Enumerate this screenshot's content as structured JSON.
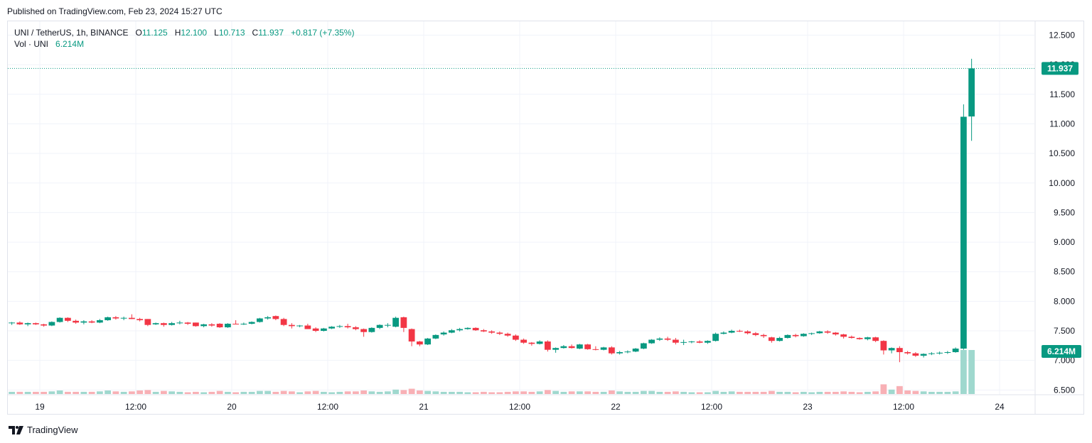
{
  "published": "Published on TradingView.com, Feb 23, 2024 15:27 UTC",
  "legend": {
    "symbol": "UNI / TetherUS, 1h, BINANCE",
    "o_label": "O",
    "o": "11.125",
    "h_label": "H",
    "h": "12.100",
    "l_label": "L",
    "l": "10.713",
    "c_label": "C",
    "c": "11.937",
    "change": "+0.817 (+7.35%)",
    "vol_label": "Vol · UNI",
    "vol": "6.214M"
  },
  "brand": "TradingView",
  "colors": {
    "up": "#089981",
    "down": "#f23645",
    "up_vol": "#9fd8ce",
    "down_vol": "#f8b0b5",
    "grid": "#f0f3fa"
  },
  "chart_data": {
    "type": "candlestick",
    "symbol": "UNI / TetherUS",
    "interval": "1h",
    "exchange": "BINANCE",
    "y_ticks": [
      "12.500",
      "12.000",
      "11.500",
      "11.000",
      "10.500",
      "10.000",
      "9.500",
      "9.000",
      "8.500",
      "8.000",
      "7.500",
      "7.000",
      "6.500"
    ],
    "ylim": [
      6.42,
      12.53
    ],
    "x_ticks": [
      "19",
      "12:00",
      "20",
      "12:00",
      "21",
      "12:00",
      "22",
      "12:00",
      "23",
      "12:00",
      "24"
    ],
    "x_tick_hours": [
      0,
      12,
      24,
      36,
      48,
      60,
      72,
      84,
      96,
      108,
      120
    ],
    "xlim_hours": [
      -4,
      120
    ],
    "last_price": "11.937",
    "last_volume": "6.214M",
    "candles": [
      [
        -3.5,
        7.63,
        7.65,
        7.6,
        7.64
      ],
      [
        -2.5,
        7.64,
        7.66,
        7.6,
        7.61
      ],
      [
        -1.5,
        7.61,
        7.64,
        7.58,
        7.63
      ],
      [
        -0.5,
        7.63,
        7.64,
        7.6,
        7.61
      ],
      [
        0.5,
        7.61,
        7.62,
        7.57,
        7.59
      ],
      [
        1.5,
        7.59,
        7.66,
        7.58,
        7.65
      ],
      [
        2.5,
        7.65,
        7.73,
        7.64,
        7.72
      ],
      [
        3.5,
        7.72,
        7.73,
        7.65,
        7.67
      ],
      [
        4.5,
        7.67,
        7.69,
        7.62,
        7.64
      ],
      [
        5.5,
        7.64,
        7.68,
        7.61,
        7.66
      ],
      [
        6.5,
        7.66,
        7.68,
        7.63,
        7.64
      ],
      [
        7.5,
        7.64,
        7.7,
        7.63,
        7.68
      ],
      [
        8.5,
        7.68,
        7.74,
        7.67,
        7.73
      ],
      [
        9.5,
        7.73,
        7.75,
        7.69,
        7.71
      ],
      [
        10.5,
        7.71,
        7.74,
        7.68,
        7.72
      ],
      [
        11.5,
        7.72,
        7.78,
        7.7,
        7.7
      ],
      [
        12.5,
        7.7,
        7.72,
        7.66,
        7.68
      ],
      [
        13.5,
        7.7,
        7.7,
        7.58,
        7.6
      ],
      [
        14.5,
        7.61,
        7.64,
        7.6,
        7.63
      ],
      [
        15.5,
        7.63,
        7.64,
        7.57,
        7.6
      ],
      [
        16.5,
        7.6,
        7.65,
        7.59,
        7.63
      ],
      [
        17.5,
        7.63,
        7.67,
        7.61,
        7.64
      ],
      [
        18.5,
        7.64,
        7.65,
        7.6,
        7.62
      ],
      [
        19.5,
        7.64,
        7.64,
        7.57,
        7.58
      ],
      [
        20.5,
        7.58,
        7.62,
        7.56,
        7.61
      ],
      [
        21.5,
        7.61,
        7.63,
        7.57,
        7.59
      ],
      [
        22.5,
        7.62,
        7.63,
        7.55,
        7.56
      ],
      [
        23.5,
        7.56,
        7.63,
        7.55,
        7.62
      ],
      [
        24.5,
        7.62,
        7.68,
        7.61,
        7.61
      ],
      [
        25.5,
        7.61,
        7.64,
        7.6,
        7.62
      ],
      [
        26.5,
        7.62,
        7.66,
        7.61,
        7.65
      ],
      [
        27.5,
        7.65,
        7.72,
        7.64,
        7.71
      ],
      [
        28.5,
        7.71,
        7.75,
        7.69,
        7.73
      ],
      [
        29.5,
        7.75,
        7.76,
        7.68,
        7.7
      ],
      [
        30.5,
        7.7,
        7.72,
        7.58,
        7.6
      ],
      [
        31.5,
        7.6,
        7.63,
        7.54,
        7.58
      ],
      [
        32.5,
        7.58,
        7.6,
        7.56,
        7.59
      ],
      [
        33.5,
        7.59,
        7.62,
        7.53,
        7.53
      ],
      [
        34.5,
        7.54,
        7.56,
        7.48,
        7.5
      ],
      [
        35.5,
        7.5,
        7.55,
        7.49,
        7.54
      ],
      [
        36.5,
        7.54,
        7.58,
        7.53,
        7.57
      ],
      [
        37.5,
        7.57,
        7.6,
        7.55,
        7.58
      ],
      [
        38.5,
        7.58,
        7.62,
        7.54,
        7.56
      ],
      [
        39.5,
        7.56,
        7.58,
        7.51,
        7.53
      ],
      [
        40.5,
        7.53,
        7.54,
        7.4,
        7.48
      ],
      [
        41.5,
        7.48,
        7.56,
        7.47,
        7.55
      ],
      [
        42.5,
        7.55,
        7.61,
        7.53,
        7.6
      ],
      [
        43.5,
        7.6,
        7.63,
        7.56,
        7.6
      ],
      [
        44.5,
        7.57,
        7.74,
        7.56,
        7.72
      ],
      [
        45.5,
        7.73,
        7.74,
        7.48,
        7.55
      ],
      [
        46.5,
        7.53,
        7.54,
        7.24,
        7.32
      ],
      [
        47.5,
        7.32,
        7.33,
        7.24,
        7.27
      ],
      [
        48.5,
        7.27,
        7.38,
        7.26,
        7.37
      ],
      [
        49.5,
        7.37,
        7.44,
        7.36,
        7.43
      ],
      [
        50.5,
        7.44,
        7.49,
        7.42,
        7.47
      ],
      [
        51.5,
        7.47,
        7.53,
        7.46,
        7.51
      ],
      [
        52.5,
        7.51,
        7.55,
        7.49,
        7.53
      ],
      [
        53.5,
        7.53,
        7.56,
        7.52,
        7.55
      ],
      [
        54.5,
        7.55,
        7.56,
        7.5,
        7.51
      ],
      [
        55.5,
        7.51,
        7.53,
        7.48,
        7.49
      ],
      [
        56.5,
        7.49,
        7.51,
        7.45,
        7.47
      ],
      [
        57.5,
        7.47,
        7.49,
        7.43,
        7.45
      ],
      [
        58.5,
        7.45,
        7.47,
        7.4,
        7.42
      ],
      [
        59.5,
        7.42,
        7.44,
        7.33,
        7.35
      ],
      [
        60.5,
        7.35,
        7.37,
        7.28,
        7.3
      ],
      [
        61.5,
        7.3,
        7.31,
        7.25,
        7.28
      ],
      [
        62.5,
        7.28,
        7.34,
        7.27,
        7.32
      ],
      [
        63.5,
        7.32,
        7.34,
        7.15,
        7.18
      ],
      [
        64.5,
        7.18,
        7.22,
        7.13,
        7.21
      ],
      [
        65.5,
        7.21,
        7.26,
        7.2,
        7.24
      ],
      [
        66.5,
        7.24,
        7.27,
        7.2,
        7.21
      ],
      [
        67.5,
        7.2,
        7.28,
        7.19,
        7.27
      ],
      [
        68.5,
        7.27,
        7.28,
        7.18,
        7.19
      ],
      [
        69.5,
        7.19,
        7.24,
        7.17,
        7.18
      ],
      [
        70.5,
        7.18,
        7.23,
        7.17,
        7.22
      ],
      [
        71.5,
        7.22,
        7.24,
        7.1,
        7.12
      ],
      [
        72.5,
        7.12,
        7.16,
        7.1,
        7.14
      ],
      [
        73.5,
        7.14,
        7.17,
        7.12,
        7.15
      ],
      [
        74.5,
        7.15,
        7.21,
        7.14,
        7.2
      ],
      [
        75.5,
        7.2,
        7.3,
        7.19,
        7.29
      ],
      [
        76.5,
        7.29,
        7.36,
        7.28,
        7.35
      ],
      [
        77.5,
        7.35,
        7.39,
        7.33,
        7.37
      ],
      [
        78.5,
        7.37,
        7.4,
        7.33,
        7.35
      ],
      [
        79.5,
        7.35,
        7.38,
        7.27,
        7.3
      ],
      [
        80.5,
        7.3,
        7.35,
        7.26,
        7.31
      ],
      [
        81.5,
        7.31,
        7.33,
        7.29,
        7.32
      ],
      [
        82.5,
        7.32,
        7.34,
        7.29,
        7.3
      ],
      [
        83.5,
        7.3,
        7.34,
        7.28,
        7.33
      ],
      [
        84.5,
        7.33,
        7.47,
        7.32,
        7.45
      ],
      [
        85.5,
        7.45,
        7.49,
        7.44,
        7.47
      ],
      [
        86.5,
        7.47,
        7.52,
        7.46,
        7.5
      ],
      [
        87.5,
        7.5,
        7.52,
        7.48,
        7.49
      ],
      [
        88.5,
        7.49,
        7.51,
        7.44,
        7.46
      ],
      [
        89.5,
        7.46,
        7.48,
        7.41,
        7.43
      ],
      [
        90.5,
        7.43,
        7.45,
        7.38,
        7.41
      ],
      [
        91.5,
        7.39,
        7.4,
        7.3,
        7.33
      ],
      [
        92.5,
        7.33,
        7.4,
        7.32,
        7.38
      ],
      [
        93.5,
        7.38,
        7.44,
        7.37,
        7.43
      ],
      [
        94.5,
        7.43,
        7.45,
        7.39,
        7.41
      ],
      [
        95.5,
        7.41,
        7.46,
        7.4,
        7.45
      ],
      [
        96.5,
        7.45,
        7.47,
        7.43,
        7.46
      ],
      [
        97.5,
        7.46,
        7.5,
        7.45,
        7.49
      ],
      [
        98.5,
        7.49,
        7.51,
        7.45,
        7.47
      ],
      [
        99.5,
        7.47,
        7.48,
        7.42,
        7.44
      ],
      [
        100.5,
        7.44,
        7.45,
        7.37,
        7.4
      ],
      [
        101.5,
        7.4,
        7.42,
        7.37,
        7.38
      ],
      [
        102.5,
        7.38,
        7.39,
        7.35,
        7.36
      ],
      [
        103.5,
        7.36,
        7.4,
        7.34,
        7.39
      ],
      [
        104.5,
        7.39,
        7.4,
        7.31,
        7.33
      ],
      [
        105.5,
        7.33,
        7.34,
        7.1,
        7.17
      ],
      [
        106.5,
        7.17,
        7.22,
        7.12,
        7.21
      ],
      [
        107.5,
        7.21,
        7.24,
        6.97,
        7.14
      ],
      [
        108.5,
        7.14,
        7.16,
        7.1,
        7.12
      ],
      [
        109.5,
        7.12,
        7.14,
        7.06,
        7.08
      ],
      [
        110.5,
        7.08,
        7.12,
        7.05,
        7.11
      ],
      [
        111.5,
        7.11,
        7.14,
        7.09,
        7.12
      ],
      [
        112.5,
        7.12,
        7.15,
        7.1,
        7.13
      ],
      [
        113.5,
        7.13,
        7.16,
        7.11,
        7.14
      ],
      [
        114.5,
        7.14,
        7.22,
        7.13,
        7.2
      ],
      [
        115.5,
        7.2,
        11.33,
        7.18,
        11.12
      ],
      [
        116.5,
        11.125,
        12.1,
        10.713,
        11.937
      ]
    ],
    "volume_series": [
      [
        -3.5,
        0.05,
        1
      ],
      [
        -2.5,
        0.05,
        0
      ],
      [
        -1.5,
        0.05,
        1
      ],
      [
        -0.5,
        0.05,
        0
      ],
      [
        0.5,
        0.05,
        0
      ],
      [
        1.5,
        0.06,
        1
      ],
      [
        2.5,
        0.08,
        1
      ],
      [
        3.5,
        0.05,
        0
      ],
      [
        4.5,
        0.05,
        0
      ],
      [
        5.5,
        0.05,
        1
      ],
      [
        6.5,
        0.05,
        0
      ],
      [
        7.5,
        0.06,
        1
      ],
      [
        8.5,
        0.08,
        1
      ],
      [
        9.5,
        0.06,
        0
      ],
      [
        10.5,
        0.05,
        1
      ],
      [
        11.5,
        0.06,
        0
      ],
      [
        12.5,
        0.08,
        0
      ],
      [
        13.5,
        0.09,
        0
      ],
      [
        14.5,
        0.05,
        1
      ],
      [
        15.5,
        0.07,
        0
      ],
      [
        16.5,
        0.06,
        1
      ],
      [
        17.5,
        0.05,
        1
      ],
      [
        18.5,
        0.04,
        0
      ],
      [
        19.5,
        0.05,
        0
      ],
      [
        20.5,
        0.04,
        1
      ],
      [
        21.5,
        0.05,
        0
      ],
      [
        22.5,
        0.07,
        0
      ],
      [
        23.5,
        0.05,
        1
      ],
      [
        24.5,
        0.04,
        0
      ],
      [
        25.5,
        0.05,
        1
      ],
      [
        26.5,
        0.05,
        1
      ],
      [
        27.5,
        0.07,
        1
      ],
      [
        28.5,
        0.07,
        1
      ],
      [
        29.5,
        0.05,
        0
      ],
      [
        30.5,
        0.07,
        0
      ],
      [
        31.5,
        0.06,
        0
      ],
      [
        32.5,
        0.04,
        1
      ],
      [
        33.5,
        0.06,
        0
      ],
      [
        34.5,
        0.07,
        0
      ],
      [
        35.5,
        0.05,
        1
      ],
      [
        36.5,
        0.04,
        1
      ],
      [
        37.5,
        0.05,
        1
      ],
      [
        38.5,
        0.06,
        0
      ],
      [
        39.5,
        0.06,
        0
      ],
      [
        40.5,
        0.08,
        0
      ],
      [
        41.5,
        0.06,
        1
      ],
      [
        42.5,
        0.05,
        1
      ],
      [
        43.5,
        0.06,
        1
      ],
      [
        44.5,
        0.1,
        1
      ],
      [
        45.5,
        0.09,
        0
      ],
      [
        46.5,
        0.12,
        0
      ],
      [
        47.5,
        0.08,
        0
      ],
      [
        48.5,
        0.07,
        1
      ],
      [
        49.5,
        0.06,
        1
      ],
      [
        50.5,
        0.05,
        1
      ],
      [
        51.5,
        0.05,
        1
      ],
      [
        52.5,
        0.05,
        1
      ],
      [
        53.5,
        0.04,
        1
      ],
      [
        54.5,
        0.04,
        0
      ],
      [
        55.5,
        0.05,
        0
      ],
      [
        56.5,
        0.04,
        0
      ],
      [
        57.5,
        0.04,
        0
      ],
      [
        58.5,
        0.05,
        0
      ],
      [
        59.5,
        0.06,
        0
      ],
      [
        60.5,
        0.06,
        0
      ],
      [
        61.5,
        0.05,
        0
      ],
      [
        62.5,
        0.06,
        1
      ],
      [
        63.5,
        0.09,
        0
      ],
      [
        64.5,
        0.07,
        1
      ],
      [
        65.5,
        0.05,
        1
      ],
      [
        66.5,
        0.06,
        0
      ],
      [
        67.5,
        0.06,
        1
      ],
      [
        68.5,
        0.06,
        0
      ],
      [
        69.5,
        0.05,
        0
      ],
      [
        70.5,
        0.05,
        1
      ],
      [
        71.5,
        0.08,
        0
      ],
      [
        72.5,
        0.06,
        1
      ],
      [
        73.5,
        0.05,
        1
      ],
      [
        74.5,
        0.05,
        1
      ],
      [
        75.5,
        0.07,
        1
      ],
      [
        76.5,
        0.07,
        1
      ],
      [
        77.5,
        0.05,
        1
      ],
      [
        78.5,
        0.05,
        0
      ],
      [
        79.5,
        0.06,
        0
      ],
      [
        80.5,
        0.05,
        1
      ],
      [
        81.5,
        0.04,
        1
      ],
      [
        82.5,
        0.04,
        0
      ],
      [
        83.5,
        0.04,
        1
      ],
      [
        84.5,
        0.07,
        1
      ],
      [
        85.5,
        0.05,
        1
      ],
      [
        86.5,
        0.06,
        1
      ],
      [
        87.5,
        0.05,
        0
      ],
      [
        88.5,
        0.05,
        0
      ],
      [
        89.5,
        0.05,
        0
      ],
      [
        90.5,
        0.05,
        0
      ],
      [
        91.5,
        0.07,
        0
      ],
      [
        92.5,
        0.05,
        1
      ],
      [
        93.5,
        0.05,
        1
      ],
      [
        94.5,
        0.04,
        0
      ],
      [
        95.5,
        0.05,
        1
      ],
      [
        96.5,
        0.04,
        1
      ],
      [
        97.5,
        0.05,
        1
      ],
      [
        98.5,
        0.05,
        0
      ],
      [
        99.5,
        0.05,
        0
      ],
      [
        100.5,
        0.06,
        0
      ],
      [
        101.5,
        0.05,
        0
      ],
      [
        102.5,
        0.04,
        0
      ],
      [
        103.5,
        0.05,
        1
      ],
      [
        104.5,
        0.06,
        0
      ],
      [
        105.5,
        0.22,
        0
      ],
      [
        106.5,
        0.1,
        1
      ],
      [
        107.5,
        0.18,
        0
      ],
      [
        108.5,
        0.08,
        0
      ],
      [
        109.5,
        0.07,
        0
      ],
      [
        110.5,
        0.06,
        1
      ],
      [
        111.5,
        0.05,
        1
      ],
      [
        112.5,
        0.05,
        1
      ],
      [
        113.5,
        0.05,
        1
      ],
      [
        114.5,
        0.06,
        1
      ],
      [
        115.5,
        1.0,
        1
      ],
      [
        116.5,
        1.0,
        1
      ]
    ]
  }
}
